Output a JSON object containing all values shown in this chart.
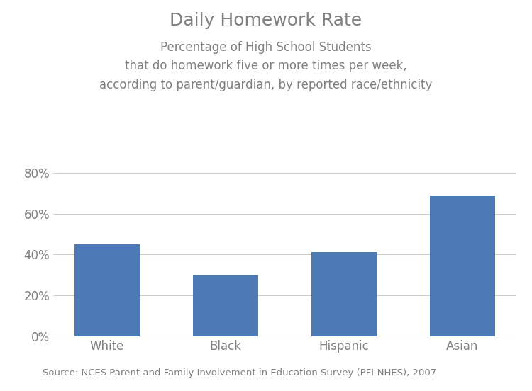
{
  "categories": [
    "White",
    "Black",
    "Hispanic",
    "Asian"
  ],
  "values": [
    0.45,
    0.3,
    0.41,
    0.69
  ],
  "bar_color": "#4d7ab5",
  "title": "Daily Homework Rate",
  "subtitle_line1": "Percentage of High School Students",
  "subtitle_line2": "that do homework five or more times per week,",
  "subtitle_line3": "according to parent/guardian, by reported race/ethnicity",
  "title_fontsize": 18,
  "subtitle_fontsize": 12,
  "ylim": [
    0,
    0.88
  ],
  "yticks": [
    0.0,
    0.2,
    0.4,
    0.6,
    0.8
  ],
  "ytick_labels": [
    "0%",
    "20%",
    "40%",
    "60%",
    "80%"
  ],
  "source_text": "Source: NCES Parent and Family Involvement in Education Survey (PFI-NHES), 2007",
  "source_fontsize": 9.5,
  "background_color": "#ffffff",
  "grid_color": "#cccccc",
  "tick_label_fontsize": 12,
  "text_color": "#808080"
}
